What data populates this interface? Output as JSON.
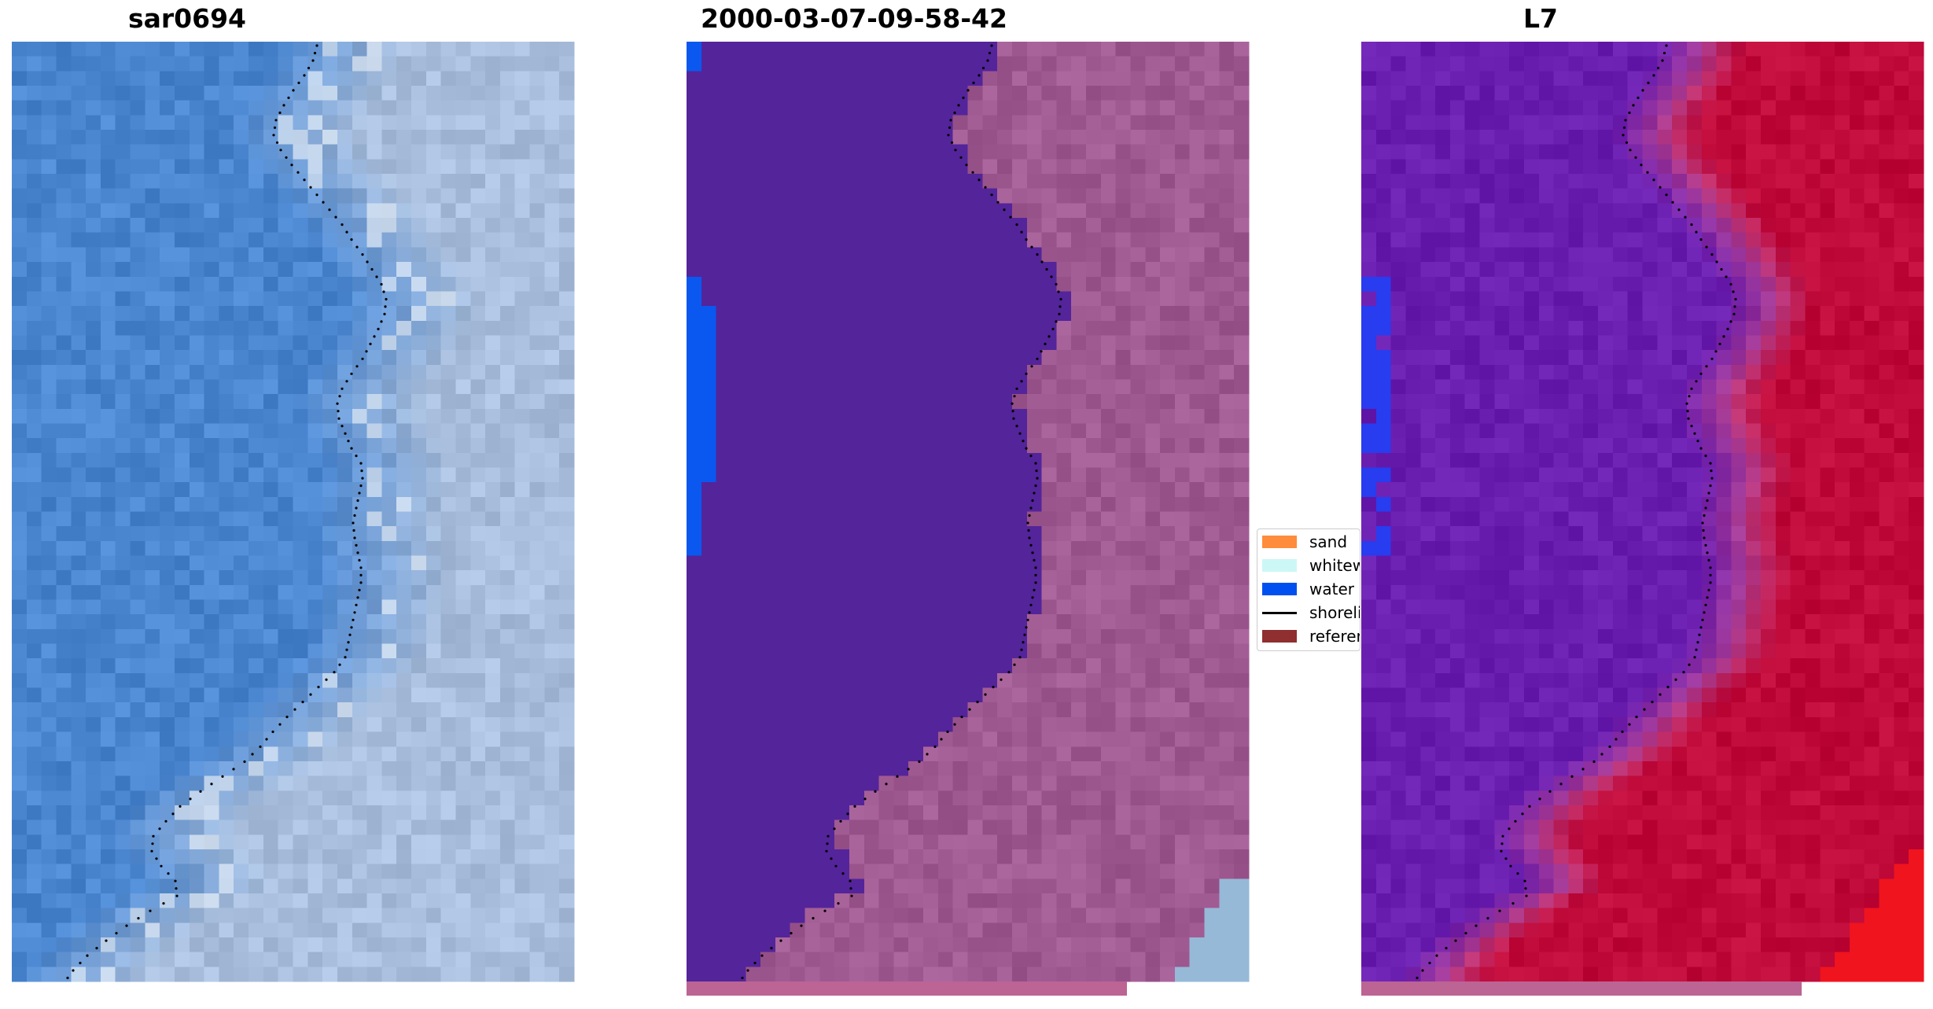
{
  "panels": [
    {
      "title": "sar0694",
      "kind": "rgb"
    },
    {
      "title": "2000-03-07-09-58-42",
      "kind": "classified"
    },
    {
      "title": "L7",
      "kind": "index"
    }
  ],
  "legend": {
    "items": [
      {
        "label": "sand",
        "color": "#ff8c3c",
        "type": "patch"
      },
      {
        "label": "whitew",
        "color": "#ccf7f7",
        "type": "patch"
      },
      {
        "label": "water",
        "color": "#0050f0",
        "type": "patch"
      },
      {
        "label": "shoreli",
        "color": "#000000",
        "type": "line"
      },
      {
        "label": "referer",
        "color": "#8f2f2f",
        "type": "patch"
      }
    ]
  },
  "colors": {
    "rgb_water": "#4a86d0",
    "rgb_land": "#a8bedc",
    "class_water": "#54249a",
    "class_land": "#a05a92",
    "class_blue": "#0a58f0",
    "index_water": "#6a1eb0",
    "index_land": "#bf0a3a",
    "bottom_bar": "#bc6494",
    "shoreline": "#000000"
  }
}
